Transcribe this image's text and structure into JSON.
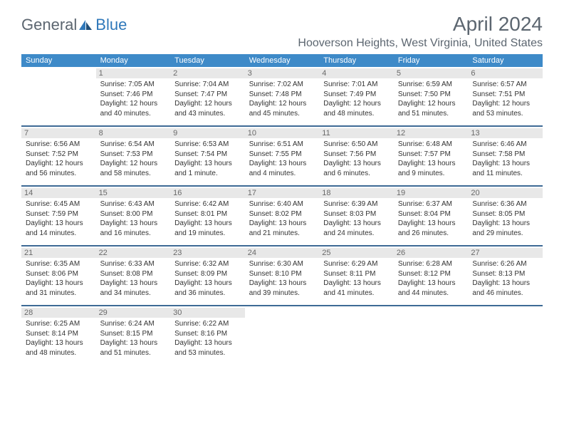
{
  "logo": {
    "text1": "General",
    "text2": "Blue"
  },
  "title": "April 2024",
  "location": "Hooverson Heights, West Virginia, United States",
  "colors": {
    "header_bg": "#3e8ac8",
    "band_bg": "#e8e8e8",
    "rule": "#3e6a95",
    "text": "#333333",
    "title_text": "#5c6670"
  },
  "daysOfWeek": [
    "Sunday",
    "Monday",
    "Tuesday",
    "Wednesday",
    "Thursday",
    "Friday",
    "Saturday"
  ],
  "weeks": [
    [
      {
        "empty": true
      },
      {
        "num": "1",
        "sunrise": "Sunrise: 7:05 AM",
        "sunset": "Sunset: 7:46 PM",
        "daylight": "Daylight: 12 hours and 40 minutes."
      },
      {
        "num": "2",
        "sunrise": "Sunrise: 7:04 AM",
        "sunset": "Sunset: 7:47 PM",
        "daylight": "Daylight: 12 hours and 43 minutes."
      },
      {
        "num": "3",
        "sunrise": "Sunrise: 7:02 AM",
        "sunset": "Sunset: 7:48 PM",
        "daylight": "Daylight: 12 hours and 45 minutes."
      },
      {
        "num": "4",
        "sunrise": "Sunrise: 7:01 AM",
        "sunset": "Sunset: 7:49 PM",
        "daylight": "Daylight: 12 hours and 48 minutes."
      },
      {
        "num": "5",
        "sunrise": "Sunrise: 6:59 AM",
        "sunset": "Sunset: 7:50 PM",
        "daylight": "Daylight: 12 hours and 51 minutes."
      },
      {
        "num": "6",
        "sunrise": "Sunrise: 6:57 AM",
        "sunset": "Sunset: 7:51 PM",
        "daylight": "Daylight: 12 hours and 53 minutes."
      }
    ],
    [
      {
        "num": "7",
        "sunrise": "Sunrise: 6:56 AM",
        "sunset": "Sunset: 7:52 PM",
        "daylight": "Daylight: 12 hours and 56 minutes."
      },
      {
        "num": "8",
        "sunrise": "Sunrise: 6:54 AM",
        "sunset": "Sunset: 7:53 PM",
        "daylight": "Daylight: 12 hours and 58 minutes."
      },
      {
        "num": "9",
        "sunrise": "Sunrise: 6:53 AM",
        "sunset": "Sunset: 7:54 PM",
        "daylight": "Daylight: 13 hours and 1 minute."
      },
      {
        "num": "10",
        "sunrise": "Sunrise: 6:51 AM",
        "sunset": "Sunset: 7:55 PM",
        "daylight": "Daylight: 13 hours and 4 minutes."
      },
      {
        "num": "11",
        "sunrise": "Sunrise: 6:50 AM",
        "sunset": "Sunset: 7:56 PM",
        "daylight": "Daylight: 13 hours and 6 minutes."
      },
      {
        "num": "12",
        "sunrise": "Sunrise: 6:48 AM",
        "sunset": "Sunset: 7:57 PM",
        "daylight": "Daylight: 13 hours and 9 minutes."
      },
      {
        "num": "13",
        "sunrise": "Sunrise: 6:46 AM",
        "sunset": "Sunset: 7:58 PM",
        "daylight": "Daylight: 13 hours and 11 minutes."
      }
    ],
    [
      {
        "num": "14",
        "sunrise": "Sunrise: 6:45 AM",
        "sunset": "Sunset: 7:59 PM",
        "daylight": "Daylight: 13 hours and 14 minutes."
      },
      {
        "num": "15",
        "sunrise": "Sunrise: 6:43 AM",
        "sunset": "Sunset: 8:00 PM",
        "daylight": "Daylight: 13 hours and 16 minutes."
      },
      {
        "num": "16",
        "sunrise": "Sunrise: 6:42 AM",
        "sunset": "Sunset: 8:01 PM",
        "daylight": "Daylight: 13 hours and 19 minutes."
      },
      {
        "num": "17",
        "sunrise": "Sunrise: 6:40 AM",
        "sunset": "Sunset: 8:02 PM",
        "daylight": "Daylight: 13 hours and 21 minutes."
      },
      {
        "num": "18",
        "sunrise": "Sunrise: 6:39 AM",
        "sunset": "Sunset: 8:03 PM",
        "daylight": "Daylight: 13 hours and 24 minutes."
      },
      {
        "num": "19",
        "sunrise": "Sunrise: 6:37 AM",
        "sunset": "Sunset: 8:04 PM",
        "daylight": "Daylight: 13 hours and 26 minutes."
      },
      {
        "num": "20",
        "sunrise": "Sunrise: 6:36 AM",
        "sunset": "Sunset: 8:05 PM",
        "daylight": "Daylight: 13 hours and 29 minutes."
      }
    ],
    [
      {
        "num": "21",
        "sunrise": "Sunrise: 6:35 AM",
        "sunset": "Sunset: 8:06 PM",
        "daylight": "Daylight: 13 hours and 31 minutes."
      },
      {
        "num": "22",
        "sunrise": "Sunrise: 6:33 AM",
        "sunset": "Sunset: 8:08 PM",
        "daylight": "Daylight: 13 hours and 34 minutes."
      },
      {
        "num": "23",
        "sunrise": "Sunrise: 6:32 AM",
        "sunset": "Sunset: 8:09 PM",
        "daylight": "Daylight: 13 hours and 36 minutes."
      },
      {
        "num": "24",
        "sunrise": "Sunrise: 6:30 AM",
        "sunset": "Sunset: 8:10 PM",
        "daylight": "Daylight: 13 hours and 39 minutes."
      },
      {
        "num": "25",
        "sunrise": "Sunrise: 6:29 AM",
        "sunset": "Sunset: 8:11 PM",
        "daylight": "Daylight: 13 hours and 41 minutes."
      },
      {
        "num": "26",
        "sunrise": "Sunrise: 6:28 AM",
        "sunset": "Sunset: 8:12 PM",
        "daylight": "Daylight: 13 hours and 44 minutes."
      },
      {
        "num": "27",
        "sunrise": "Sunrise: 6:26 AM",
        "sunset": "Sunset: 8:13 PM",
        "daylight": "Daylight: 13 hours and 46 minutes."
      }
    ],
    [
      {
        "num": "28",
        "sunrise": "Sunrise: 6:25 AM",
        "sunset": "Sunset: 8:14 PM",
        "daylight": "Daylight: 13 hours and 48 minutes."
      },
      {
        "num": "29",
        "sunrise": "Sunrise: 6:24 AM",
        "sunset": "Sunset: 8:15 PM",
        "daylight": "Daylight: 13 hours and 51 minutes."
      },
      {
        "num": "30",
        "sunrise": "Sunrise: 6:22 AM",
        "sunset": "Sunset: 8:16 PM",
        "daylight": "Daylight: 13 hours and 53 minutes."
      },
      {
        "empty": true
      },
      {
        "empty": true
      },
      {
        "empty": true
      },
      {
        "empty": true
      }
    ]
  ]
}
